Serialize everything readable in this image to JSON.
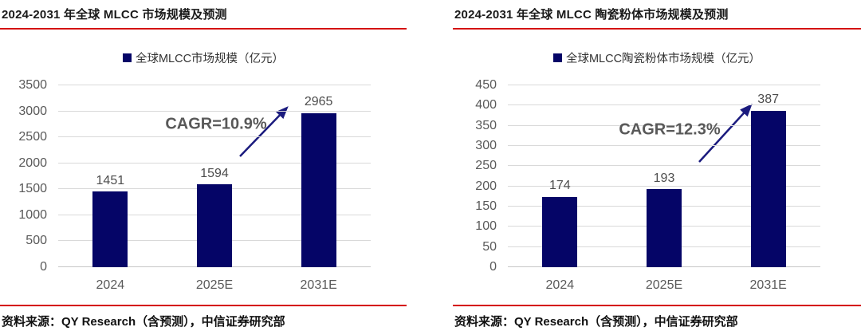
{
  "colors": {
    "bar": "#050567",
    "accent_red": "#D40000",
    "arrow": "#1B1B7E",
    "grid": "#D9D9D9",
    "axis_line": "#C6C6C6",
    "tick_text": "#595959",
    "value_text": "#4D4D4D",
    "title_text": "#1A1A1A",
    "annotation_text": "#595959",
    "source_text": "#111111"
  },
  "chart_data": [
    {
      "type": "bar",
      "title": "2024-2031 年全球 MLCC 市场规模及预测",
      "categories": [
        "2024",
        "2025E",
        "2031E"
      ],
      "series": [
        {
          "name": "全球MLCC市场规模（亿元）",
          "values": [
            1451,
            1594,
            2965
          ]
        }
      ],
      "ylim": [
        0,
        3500
      ],
      "ytick_step": 500,
      "grid": true,
      "legend_position": "top",
      "annotation": "CAGR=10.9%",
      "source": "资料来源：QY Research（含预测），中信证券研究部"
    },
    {
      "type": "bar",
      "title": "2024-2031 年全球 MLCC 陶瓷粉体市场规模及预测",
      "categories": [
        "2024",
        "2025E",
        "2031E"
      ],
      "series": [
        {
          "name": "全球MLCC陶瓷粉体市场规模（亿元）",
          "values": [
            174,
            193,
            387
          ]
        }
      ],
      "ylim": [
        0,
        450
      ],
      "ytick_step": 50,
      "grid": true,
      "legend_position": "top",
      "annotation": "CAGR=12.3%",
      "source": "资料来源：QY Research（含预测），中信证券研究部"
    }
  ]
}
